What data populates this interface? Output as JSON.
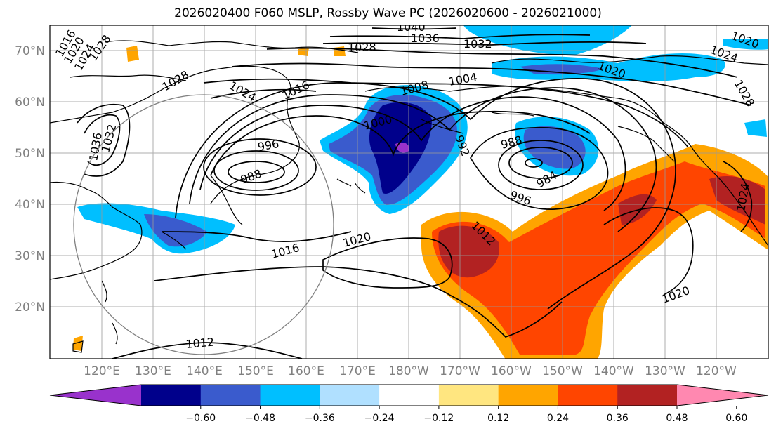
{
  "title": "2026020400 F060 MSLP, Rossby Wave PC (2026020600 - 2026021000)",
  "lat_labels": [
    "70°N",
    "60°N",
    "50°N",
    "40°N",
    "30°N",
    "20°N"
  ],
  "lon_labels": [
    "120°E",
    "130°E",
    "140°E",
    "150°E",
    "160°E",
    "170°E",
    "180°W",
    "170°W",
    "160°W",
    "150°W",
    "140°W",
    "130°W",
    "120°W"
  ],
  "colorbar": {
    "ticks": [
      "−0.60",
      "−0.48",
      "−0.36",
      "−0.24",
      "−0.12",
      "0.12",
      "0.24",
      "0.36",
      "0.48",
      "0.60"
    ],
    "colors": [
      "#9932cc",
      "#00008b",
      "#3a5bcd",
      "#00bfff",
      "#b0e0ff",
      "#ffffff",
      "#ffe680",
      "#ffa500",
      "#ff4500",
      "#b22222",
      "#ff88b0"
    ]
  },
  "isobar_labels": [
    {
      "text": "1040"
    },
    {
      "text": "1036"
    },
    {
      "text": "1032"
    },
    {
      "text": "1028"
    },
    {
      "text": "1020"
    },
    {
      "text": "1024"
    },
    {
      "text": "1028"
    },
    {
      "text": "1016"
    },
    {
      "text": "1020"
    },
    {
      "text": "1024"
    },
    {
      "text": "1028"
    },
    {
      "text": "1028"
    },
    {
      "text": "1024"
    },
    {
      "text": "1016"
    },
    {
      "text": "1008"
    },
    {
      "text": "1004"
    },
    {
      "text": "1020"
    },
    {
      "text": "1036"
    },
    {
      "text": "1032"
    },
    {
      "text": "1000"
    },
    {
      "text": "996"
    },
    {
      "text": "988"
    },
    {
      "text": "992"
    },
    {
      "text": "988"
    },
    {
      "text": "984"
    },
    {
      "text": "996"
    },
    {
      "text": "1012"
    },
    {
      "text": "1020"
    },
    {
      "text": "1016"
    },
    {
      "text": "1020"
    },
    {
      "text": "1012"
    },
    {
      "text": "1024"
    }
  ]
}
